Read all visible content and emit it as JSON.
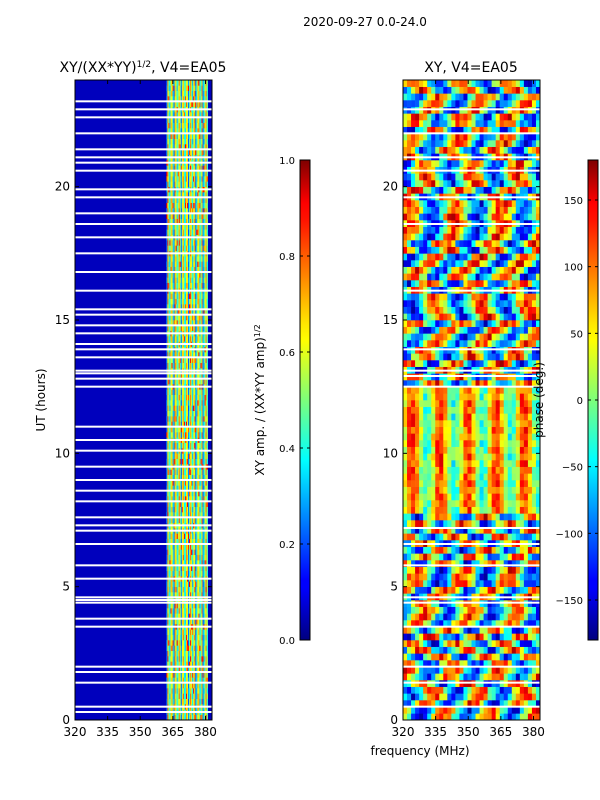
{
  "chart_data": [
    {
      "type": "heatmap",
      "suptitle": "2020-09-27 0.0-24.0",
      "title": "XY/(XX*YY)^1/2, V4=EA05",
      "title_main": "XY/(XX*YY)",
      "title_sup": "1/2",
      "title_rest": ", V4=EA05",
      "xlabel": "",
      "ylabel": "UT (hours)",
      "xlim": [
        320,
        383
      ],
      "ylim": [
        0,
        24
      ],
      "xticks": [
        320,
        335,
        350,
        365,
        380
      ],
      "yticks": [
        0,
        5,
        10,
        15,
        20
      ],
      "colormap": "jet",
      "colorbar": {
        "label": "XY amp. / (XX*YY amp)^1/2",
        "label_main": "XY amp. / (XX*YY amp)",
        "label_sup": "1/2",
        "range": [
          0.0,
          1.0
        ],
        "ticks": [
          "0.0",
          "0.2",
          "0.4",
          "0.6",
          "0.8",
          "1.0"
        ],
        "tick_values": [
          0.0,
          0.2,
          0.4,
          0.6,
          0.8,
          1.0
        ]
      },
      "gap_rows_hours": [
        0.3,
        0.5,
        1.4,
        1.8,
        2.0,
        3.5,
        3.8,
        4.4,
        4.5,
        4.6,
        5.3,
        5.8,
        6.6,
        7.1,
        7.3,
        7.6,
        8.2,
        8.6,
        9.0,
        9.5,
        10.1,
        10.5,
        11.0,
        12.5,
        12.8,
        13.0,
        13.1,
        13.6,
        13.9,
        14.1,
        14.5,
        14.8,
        15.2,
        15.4,
        16.1,
        16.8,
        17.5,
        18.1,
        18.6,
        19.0,
        19.6,
        19.9,
        20.6,
        20.9,
        21.1,
        21.4,
        22.0,
        22.6,
        22.9,
        23.2
      ],
      "bright_band_mhz": [
        362,
        381
      ]
    },
    {
      "type": "heatmap",
      "title": "XY, V4=EA05",
      "xlabel": "frequency (MHz)",
      "ylabel": "",
      "xlim": [
        320,
        383
      ],
      "ylim": [
        0,
        24
      ],
      "xticks": [
        320,
        335,
        350,
        365,
        380
      ],
      "yticks": [
        0,
        5,
        10,
        15,
        20
      ],
      "colormap": "jet",
      "colorbar": {
        "label": "phase (deg.)",
        "range": [
          -180,
          180
        ],
        "ticks": [
          "-150",
          "-100",
          "-50",
          "0",
          "50",
          "100",
          "150"
        ],
        "tick_values": [
          -150,
          -100,
          -50,
          0,
          50,
          100,
          150
        ]
      },
      "gap_rows_hours": [
        0.5,
        1.4,
        2.0,
        3.5,
        4.4,
        4.6,
        5.8,
        6.6,
        7.2,
        12.5,
        12.9,
        13.1,
        13.9,
        16.1,
        18.6,
        19.6,
        20.6,
        21.1,
        22.0,
        22.9
      ]
    }
  ]
}
